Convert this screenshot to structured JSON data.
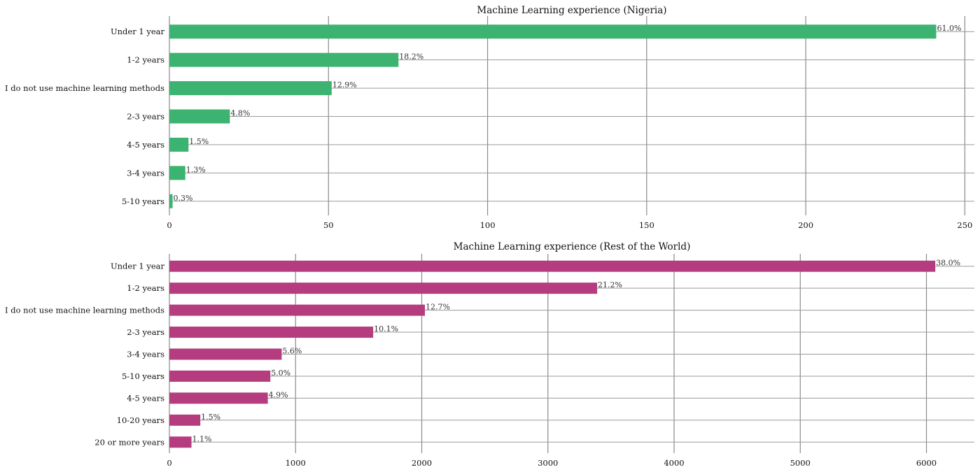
{
  "chart_data": [
    {
      "type": "bar",
      "orientation": "horizontal",
      "title": "Machine Learning experience (Nigeria)",
      "categories": [
        "Under 1 year",
        "1-2 years",
        "I do not use machine learning methods",
        "2-3 years",
        "4-5 years",
        "3-4 years",
        "5-10 years"
      ],
      "values": [
        241,
        72,
        51,
        19,
        6,
        5,
        1
      ],
      "labels": [
        "61.0%",
        "18.2%",
        "12.9%",
        "4.8%",
        "1.5%",
        "1.3%",
        "0.3%"
      ],
      "xticks": [
        0,
        50,
        100,
        150,
        200,
        250
      ],
      "xlim": [
        0,
        253
      ],
      "color": "#3cb371",
      "xlabel": "",
      "ylabel": ""
    },
    {
      "type": "bar",
      "orientation": "horizontal",
      "title": "Machine Learning experience (Rest of the World)",
      "categories": [
        "Under 1 year",
        "1-2 years",
        "I do not use machine learning methods",
        "2-3 years",
        "3-4 years",
        "5-10 years",
        "4-5 years",
        "10-20 years",
        "20 or more years"
      ],
      "values": [
        6070,
        3390,
        2025,
        1615,
        890,
        800,
        780,
        245,
        175
      ],
      "labels": [
        "38.0%",
        "21.2%",
        "12.7%",
        "10.1%",
        "5.6%",
        "5.0%",
        "4.9%",
        "1.5%",
        "1.1%"
      ],
      "xticks": [
        0,
        1000,
        2000,
        3000,
        4000,
        5000,
        6000
      ],
      "xlim": [
        0,
        6380
      ],
      "color": "#b53c7e",
      "xlabel": "",
      "ylabel": ""
    }
  ]
}
